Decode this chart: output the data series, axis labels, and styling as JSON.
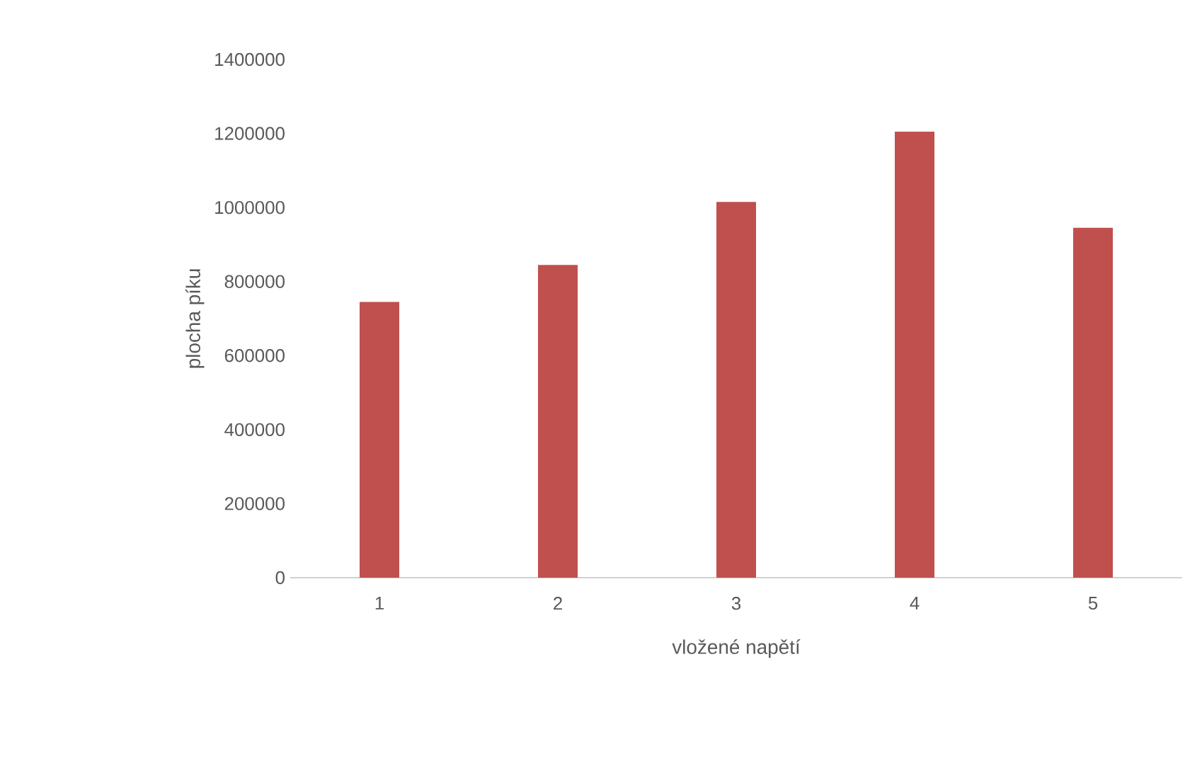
{
  "chart_data": {
    "type": "bar",
    "xlabel": "vložené napětí",
    "ylabel": "plocha píku",
    "categories": [
      "1",
      "2",
      "3",
      "4",
      "5"
    ],
    "values": [
      745000,
      845000,
      1015000,
      1205000,
      945000
    ],
    "color": "#c0504d",
    "ylim": [
      0,
      1400000
    ],
    "yticks": [
      0,
      200000,
      400000,
      600000,
      800000,
      1000000,
      1200000,
      1400000
    ],
    "grid": false
  }
}
